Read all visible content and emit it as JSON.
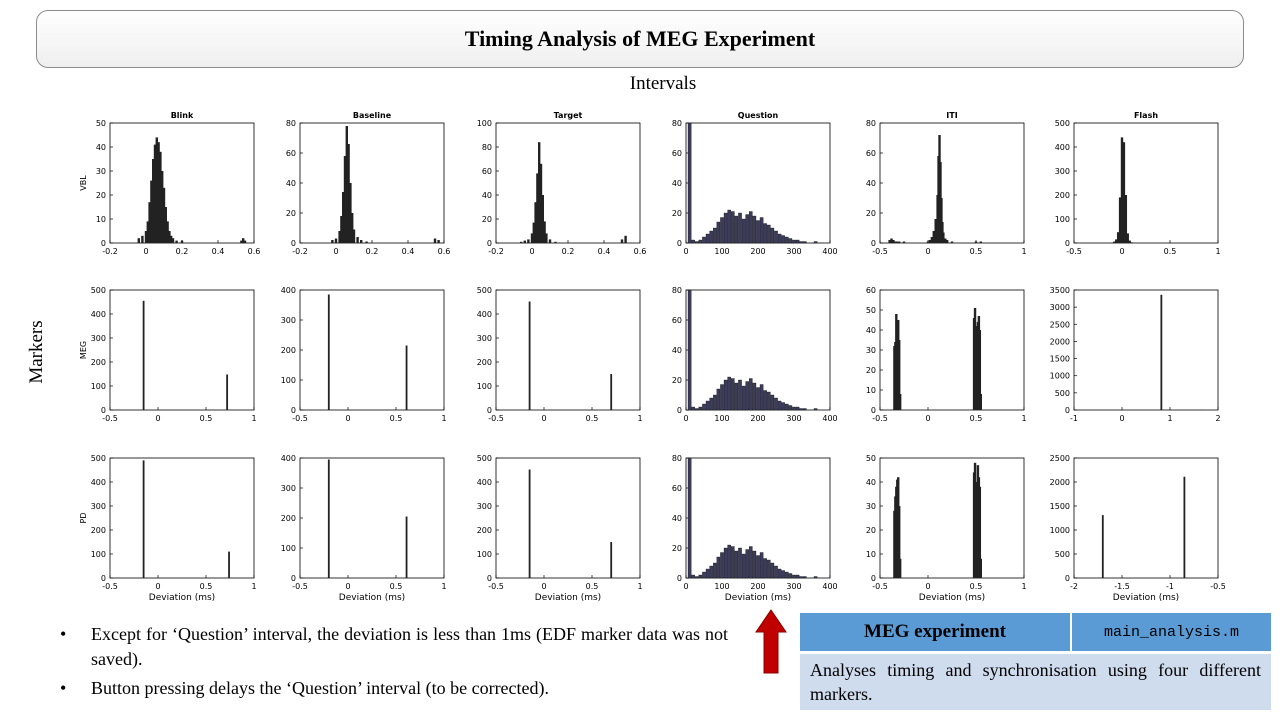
{
  "title": "Timing Analysis of MEG Experiment",
  "columns_label": "Intervals",
  "rows_label": "Markers",
  "bullets": [
    "Except for ‘Question’ interval, the deviation is less than 1ms (EDF marker data was not saved).",
    "Button pressing delays the ‘Question’ interval (to be corrected)."
  ],
  "info_table": {
    "header": "MEG experiment",
    "script": "main_analysis.m",
    "description": "Analyses timing and synchronisation using four different markers."
  },
  "colors": {
    "bars": "#222222",
    "arrow": "#c00000",
    "table_header": "#5b9bd5",
    "table_body": "#cfdcee"
  },
  "chart_data": [
    {
      "type": "bar",
      "title": "Blink",
      "ylabel": "VBL",
      "xlabel": "",
      "xlim": [
        -0.2,
        0.6
      ],
      "ylim": [
        0,
        50
      ],
      "xticks": [
        "-0.2",
        "0",
        "0.2",
        "0.4",
        "0.6"
      ],
      "yticks": [
        "0",
        "10",
        "20",
        "30",
        "40",
        "50"
      ],
      "x": [
        -0.04,
        -0.02,
        0,
        0.01,
        0.02,
        0.03,
        0.04,
        0.05,
        0.06,
        0.07,
        0.08,
        0.09,
        0.1,
        0.11,
        0.12,
        0.13,
        0.14,
        0.15,
        0.17,
        0.2,
        0.53,
        0.54,
        0.55
      ],
      "values": [
        2,
        3,
        5,
        9,
        17,
        26,
        35,
        41,
        44,
        42,
        38,
        30,
        23,
        15,
        9,
        5,
        3,
        2,
        1,
        1,
        1,
        2,
        1
      ]
    },
    {
      "type": "bar",
      "title": "Baseline",
      "ylabel": "",
      "xlabel": "",
      "xlim": [
        -0.2,
        0.6
      ],
      "ylim": [
        0,
        80
      ],
      "xticks": [
        "-0.2",
        "0",
        "0.2",
        "0.4",
        "0.6"
      ],
      "yticks": [
        "0",
        "20",
        "40",
        "60",
        "80"
      ],
      "x": [
        -0.02,
        0,
        0.02,
        0.03,
        0.04,
        0.05,
        0.06,
        0.07,
        0.08,
        0.09,
        0.1,
        0.12,
        0.14,
        0.17,
        0.55,
        0.57
      ],
      "values": [
        2,
        3,
        8,
        18,
        34,
        58,
        78,
        66,
        40,
        20,
        9,
        4,
        2,
        1,
        3,
        2
      ]
    },
    {
      "type": "bar",
      "title": "Target",
      "ylabel": "",
      "xlabel": "",
      "xlim": [
        -0.2,
        0.6
      ],
      "ylim": [
        0,
        100
      ],
      "xticks": [
        "-0.2",
        "0",
        "0.2",
        "0.4",
        "0.6"
      ],
      "yticks": [
        "0",
        "20",
        "40",
        "60",
        "80",
        "100"
      ],
      "x": [
        -0.06,
        -0.04,
        -0.02,
        0,
        0.01,
        0.02,
        0.03,
        0.04,
        0.05,
        0.06,
        0.07,
        0.08,
        0.1,
        0.13,
        0.5,
        0.52
      ],
      "values": [
        1,
        2,
        3,
        8,
        17,
        34,
        58,
        84,
        66,
        40,
        18,
        8,
        3,
        1,
        3,
        6
      ]
    },
    {
      "type": "bar",
      "title": "Question",
      "ylabel": "",
      "xlabel": "",
      "xlim": [
        0,
        400
      ],
      "ylim": [
        0,
        80
      ],
      "xticks": [
        "0",
        "100",
        "200",
        "300",
        "400"
      ],
      "yticks": [
        "0",
        "20",
        "40",
        "60",
        "80"
      ],
      "x": [
        10,
        20,
        30,
        40,
        50,
        60,
        70,
        80,
        90,
        100,
        110,
        120,
        130,
        140,
        150,
        160,
        170,
        180,
        190,
        200,
        210,
        220,
        230,
        240,
        250,
        260,
        270,
        280,
        290,
        300,
        310,
        320,
        330,
        360
      ],
      "values": [
        80,
        2,
        1,
        2,
        4,
        6,
        8,
        10,
        14,
        17,
        20,
        22,
        21,
        18,
        20,
        16,
        19,
        21,
        18,
        15,
        17,
        13,
        12,
        10,
        8,
        6,
        5,
        4,
        3,
        2,
        2,
        1,
        1,
        1
      ]
    },
    {
      "type": "bar",
      "title": "ITI",
      "ylabel": "",
      "xlabel": "",
      "xlim": [
        -0.5,
        1
      ],
      "ylim": [
        0,
        80
      ],
      "xticks": [
        "-0.5",
        "0",
        "0.5",
        "1"
      ],
      "yticks": [
        "0",
        "20",
        "40",
        "60",
        "80"
      ],
      "x": [
        -0.4,
        -0.38,
        -0.36,
        -0.34,
        -0.32,
        -0.3,
        -0.25,
        0,
        0.02,
        0.04,
        0.06,
        0.08,
        0.1,
        0.11,
        0.12,
        0.13,
        0.14,
        0.15,
        0.16,
        0.18,
        0.2,
        0.25,
        0.5,
        0.55
      ],
      "values": [
        2,
        3,
        2,
        1,
        1,
        1,
        1,
        1,
        2,
        4,
        8,
        16,
        32,
        58,
        72,
        54,
        30,
        14,
        7,
        3,
        2,
        1,
        1,
        1
      ]
    },
    {
      "type": "bar",
      "title": "Flash",
      "ylabel": "",
      "xlabel": "",
      "xlim": [
        -0.5,
        1
      ],
      "ylim": [
        0,
        500
      ],
      "xticks": [
        "-0.5",
        "0",
        "0.5",
        "1"
      ],
      "yticks": [
        "0",
        "100",
        "200",
        "300",
        "400",
        "500"
      ],
      "x": [
        -0.1,
        -0.08,
        -0.06,
        -0.04,
        -0.02,
        0,
        0.02,
        0.04,
        0.06,
        0.08,
        0.1,
        0.5
      ],
      "values": [
        2,
        6,
        15,
        45,
        190,
        440,
        420,
        200,
        40,
        10,
        3,
        1
      ]
    },
    {
      "type": "bar",
      "title": "",
      "ylabel": "MEG",
      "xlabel": "",
      "xlim": [
        -0.5,
        1
      ],
      "ylim": [
        0,
        500
      ],
      "xticks": [
        "-0.5",
        "0",
        "0.5",
        "1"
      ],
      "yticks": [
        "0",
        "100",
        "200",
        "300",
        "400",
        "500"
      ],
      "x": [
        -0.15,
        0.72
      ],
      "values": [
        455,
        148
      ]
    },
    {
      "type": "bar",
      "title": "",
      "ylabel": "",
      "xlabel": "",
      "xlim": [
        -0.5,
        1
      ],
      "ylim": [
        0,
        400
      ],
      "xticks": [
        "-0.5",
        "0",
        "0.5",
        "1"
      ],
      "yticks": [
        "0",
        "100",
        "200",
        "300",
        "400"
      ],
      "x": [
        -0.2,
        0.61
      ],
      "values": [
        385,
        215
      ]
    },
    {
      "type": "bar",
      "title": "",
      "ylabel": "",
      "xlabel": "",
      "xlim": [
        -0.5,
        1
      ],
      "ylim": [
        0,
        500
      ],
      "xticks": [
        "-0.5",
        "0",
        "0.5",
        "1"
      ],
      "yticks": [
        "0",
        "100",
        "200",
        "300",
        "400",
        "500"
      ],
      "x": [
        -0.15,
        0.7
      ],
      "values": [
        452,
        150
      ]
    },
    {
      "type": "bar",
      "title": "",
      "ylabel": "",
      "xlabel": "",
      "xlim": [
        0,
        400
      ],
      "ylim": [
        0,
        80
      ],
      "xticks": [
        "0",
        "100",
        "200",
        "300",
        "400"
      ],
      "yticks": [
        "0",
        "20",
        "40",
        "60",
        "80"
      ],
      "x": [
        10,
        20,
        30,
        40,
        50,
        60,
        70,
        80,
        90,
        100,
        110,
        120,
        130,
        140,
        150,
        160,
        170,
        180,
        190,
        200,
        210,
        220,
        230,
        240,
        250,
        260,
        270,
        280,
        290,
        300,
        310,
        320,
        330,
        360
      ],
      "values": [
        80,
        2,
        1,
        2,
        4,
        6,
        8,
        10,
        14,
        17,
        20,
        22,
        21,
        18,
        20,
        16,
        19,
        21,
        18,
        15,
        17,
        13,
        12,
        10,
        8,
        6,
        5,
        4,
        3,
        2,
        2,
        1,
        1,
        1
      ]
    },
    {
      "type": "bar",
      "title": "",
      "ylabel": "",
      "xlabel": "",
      "xlim": [
        -0.5,
        1
      ],
      "ylim": [
        0,
        60
      ],
      "xticks": [
        "-0.5",
        "0",
        "0.5",
        "1"
      ],
      "yticks": [
        "0",
        "10",
        "20",
        "30",
        "40",
        "50",
        "60"
      ],
      "x": [
        -0.35,
        -0.34,
        -0.33,
        -0.32,
        -0.31,
        -0.3,
        -0.29,
        0.48,
        0.49,
        0.5,
        0.51,
        0.52,
        0.53,
        0.54,
        0.55
      ],
      "values": [
        32,
        34,
        48,
        40,
        45,
        35,
        8,
        46,
        51,
        42,
        38,
        44,
        47,
        40,
        8
      ]
    },
    {
      "type": "bar",
      "title": "",
      "ylabel": "",
      "xlabel": "",
      "xlim": [
        -1,
        2
      ],
      "ylim": [
        0,
        3500
      ],
      "xticks": [
        "-1",
        "0",
        "1",
        "2"
      ],
      "yticks": [
        "0",
        "500",
        "1000",
        "1500",
        "2000",
        "2500",
        "3000",
        "3500"
      ],
      "x": [
        0,
        0.82,
        1.65
      ],
      "values": [
        10,
        3360,
        8
      ]
    },
    {
      "type": "bar",
      "title": "",
      "ylabel": "PD",
      "xlabel": "Deviation (ms)",
      "xlim": [
        -0.5,
        1
      ],
      "ylim": [
        0,
        500
      ],
      "xticks": [
        "-0.5",
        "0",
        "0.5",
        "1"
      ],
      "yticks": [
        "0",
        "100",
        "200",
        "300",
        "400",
        "500"
      ],
      "x": [
        -0.15,
        0.74
      ],
      "values": [
        490,
        110
      ]
    },
    {
      "type": "bar",
      "title": "",
      "ylabel": "",
      "xlabel": "Deviation (ms)",
      "xlim": [
        -0.5,
        1
      ],
      "ylim": [
        0,
        400
      ],
      "xticks": [
        "-0.5",
        "0",
        "0.5",
        "1"
      ],
      "yticks": [
        "0",
        "100",
        "200",
        "300",
        "400"
      ],
      "x": [
        -0.2,
        0.61
      ],
      "values": [
        395,
        205
      ]
    },
    {
      "type": "bar",
      "title": "",
      "ylabel": "",
      "xlabel": "Deviation (ms)",
      "xlim": [
        -0.5,
        1
      ],
      "ylim": [
        0,
        500
      ],
      "xticks": [
        "-0.5",
        "0",
        "0.5",
        "1"
      ],
      "yticks": [
        "0",
        "100",
        "200",
        "300",
        "400",
        "500"
      ],
      "x": [
        -0.15,
        0.7
      ],
      "values": [
        452,
        150
      ]
    },
    {
      "type": "bar",
      "title": "",
      "ylabel": "",
      "xlabel": "Deviation (ms)",
      "xlim": [
        0,
        400
      ],
      "ylim": [
        0,
        80
      ],
      "xticks": [
        "0",
        "100",
        "200",
        "300",
        "400"
      ],
      "yticks": [
        "0",
        "20",
        "40",
        "60",
        "80"
      ],
      "x": [
        10,
        20,
        30,
        40,
        50,
        60,
        70,
        80,
        90,
        100,
        110,
        120,
        130,
        140,
        150,
        160,
        170,
        180,
        190,
        200,
        210,
        220,
        230,
        240,
        250,
        260,
        270,
        280,
        290,
        300,
        310,
        320,
        330,
        360
      ],
      "values": [
        80,
        2,
        1,
        2,
        4,
        6,
        8,
        10,
        14,
        17,
        20,
        22,
        21,
        18,
        20,
        16,
        19,
        21,
        18,
        15,
        17,
        13,
        12,
        10,
        8,
        6,
        5,
        4,
        3,
        2,
        2,
        1,
        1,
        1
      ]
    },
    {
      "type": "bar",
      "title": "",
      "ylabel": "",
      "xlabel": "Deviation (ms)",
      "xlim": [
        -0.5,
        1
      ],
      "ylim": [
        0,
        50
      ],
      "xticks": [
        "-0.5",
        "0",
        "0.5",
        "1"
      ],
      "yticks": [
        "0",
        "10",
        "20",
        "30",
        "40",
        "50"
      ],
      "x": [
        -0.35,
        -0.34,
        -0.33,
        -0.32,
        -0.31,
        -0.3,
        -0.29,
        0.48,
        0.49,
        0.5,
        0.51,
        0.52,
        0.53,
        0.54,
        0.55
      ],
      "values": [
        28,
        34,
        38,
        41,
        42,
        30,
        8,
        44,
        48,
        40,
        36,
        47,
        42,
        38,
        8
      ]
    },
    {
      "type": "bar",
      "title": "",
      "ylabel": "",
      "xlabel": "Deviation (ms)",
      "xlim": [
        -2,
        -0.5
      ],
      "ylim": [
        0,
        2500
      ],
      "xticks": [
        "-2",
        "-1.5",
        "-1",
        "-0.5"
      ],
      "yticks": [
        "0",
        "500",
        "1000",
        "1500",
        "2000",
        "2500"
      ],
      "x": [
        -1.7,
        -0.85
      ],
      "values": [
        1310,
        2110
      ]
    }
  ]
}
